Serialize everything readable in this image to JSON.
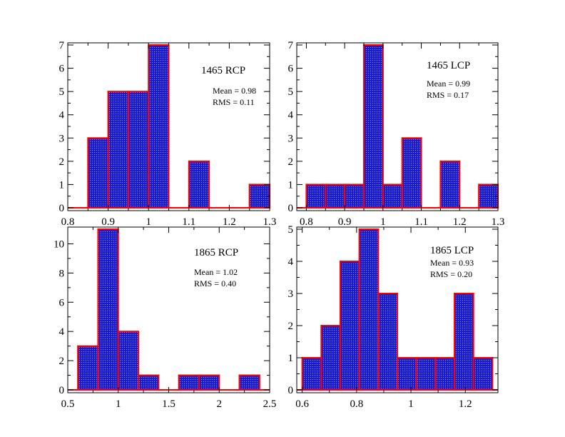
{
  "chart_data": [
    {
      "type": "bar",
      "title": "1465 RCP",
      "stats": [
        "Mean = 0.98",
        "RMS = 0.11"
      ],
      "xlabel": "",
      "ylabel": "",
      "xlim": [
        0.8,
        1.3
      ],
      "ylim": [
        0,
        7
      ],
      "bin_edges": [
        0.85,
        0.9,
        0.95,
        1.0,
        1.05,
        1.1,
        1.15,
        1.2,
        1.25,
        1.3
      ],
      "values": [
        3,
        5,
        5,
        7,
        0,
        2,
        0,
        0,
        1
      ],
      "xticks": [
        0.8,
        0.9,
        1.0,
        1.1,
        1.2,
        1.3
      ],
      "xtick_labels": [
        "0.8",
        "0.9",
        "1",
        "1.1",
        "1.2",
        "1.3"
      ],
      "yticks": [
        0,
        1,
        2,
        3,
        4,
        5,
        6,
        7
      ],
      "ytick_labels": [
        "0",
        "1",
        "2",
        "3",
        "4",
        "5",
        "6",
        "7"
      ],
      "grid": false
    },
    {
      "type": "bar",
      "title": "1465 LCP",
      "stats": [
        "Mean = 0.99",
        "RMS = 0.17"
      ],
      "xlabel": "",
      "ylabel": "",
      "xlim": [
        0.775,
        1.3
      ],
      "ylim": [
        0,
        7
      ],
      "bin_edges": [
        0.8,
        0.85,
        0.9,
        0.95,
        1.0,
        1.05,
        1.1,
        1.15,
        1.2,
        1.25,
        1.3
      ],
      "values": [
        1,
        1,
        1,
        7,
        1,
        3,
        0,
        2,
        0,
        1
      ],
      "xticks": [
        0.8,
        0.9,
        1.0,
        1.1,
        1.2,
        1.3
      ],
      "xtick_labels": [
        "0.8",
        "0.9",
        "1",
        "1.1",
        "1.2",
        "1.3"
      ],
      "yticks": [
        0,
        1,
        2,
        3,
        4,
        5,
        6,
        7
      ],
      "ytick_labels": [
        "0",
        "1",
        "2",
        "3",
        "4",
        "5",
        "6",
        "7"
      ],
      "grid": false
    },
    {
      "type": "bar",
      "title": "1865 RCP",
      "stats": [
        "Mean = 1.02",
        "RMS = 0.40"
      ],
      "xlabel": "",
      "ylabel": "",
      "xlim": [
        0.5,
        2.5
      ],
      "ylim": [
        0,
        11
      ],
      "bin_edges": [
        0.6,
        0.8,
        1.0,
        1.2,
        1.4,
        1.6,
        1.8,
        2.0,
        2.2,
        2.4
      ],
      "values": [
        3,
        11,
        4,
        1,
        0,
        1,
        1,
        0,
        1
      ],
      "xticks": [
        0.5,
        1.0,
        1.5,
        2.0,
        2.5
      ],
      "xtick_labels": [
        "0.5",
        "1",
        "1.5",
        "2",
        "2.5"
      ],
      "yticks": [
        0,
        2,
        4,
        6,
        8,
        10
      ],
      "ytick_labels": [
        "0",
        "2",
        "4",
        "6",
        "8",
        "10"
      ],
      "grid": false
    },
    {
      "type": "bar",
      "title": "1865 LCP",
      "stats": [
        "Mean = 0.93",
        "RMS = 0.20"
      ],
      "xlabel": "",
      "ylabel": "",
      "xlim": [
        0.58,
        1.32
      ],
      "ylim": [
        0,
        5
      ],
      "bin_edges": [
        0.6,
        0.67,
        0.74,
        0.81,
        0.88,
        0.95,
        1.02,
        1.09,
        1.16,
        1.23,
        1.3
      ],
      "values": [
        1,
        2,
        4,
        5,
        3,
        1,
        1,
        1,
        3,
        1
      ],
      "xticks": [
        0.6,
        0.8,
        1.0,
        1.2
      ],
      "xtick_labels": [
        "0.6",
        "0.8",
        "1",
        "1.2"
      ],
      "yticks": [
        0,
        1,
        2,
        3,
        4,
        5
      ],
      "ytick_labels": [
        "0",
        "1",
        "2",
        "3",
        "4",
        "5"
      ],
      "grid": false
    }
  ],
  "colors": {
    "bar_fill": "#1c1ccf",
    "bar_stipple": "#9a9af0",
    "bar_edge": "#ff0000",
    "axis": "#000000",
    "background": "#ffffff"
  }
}
